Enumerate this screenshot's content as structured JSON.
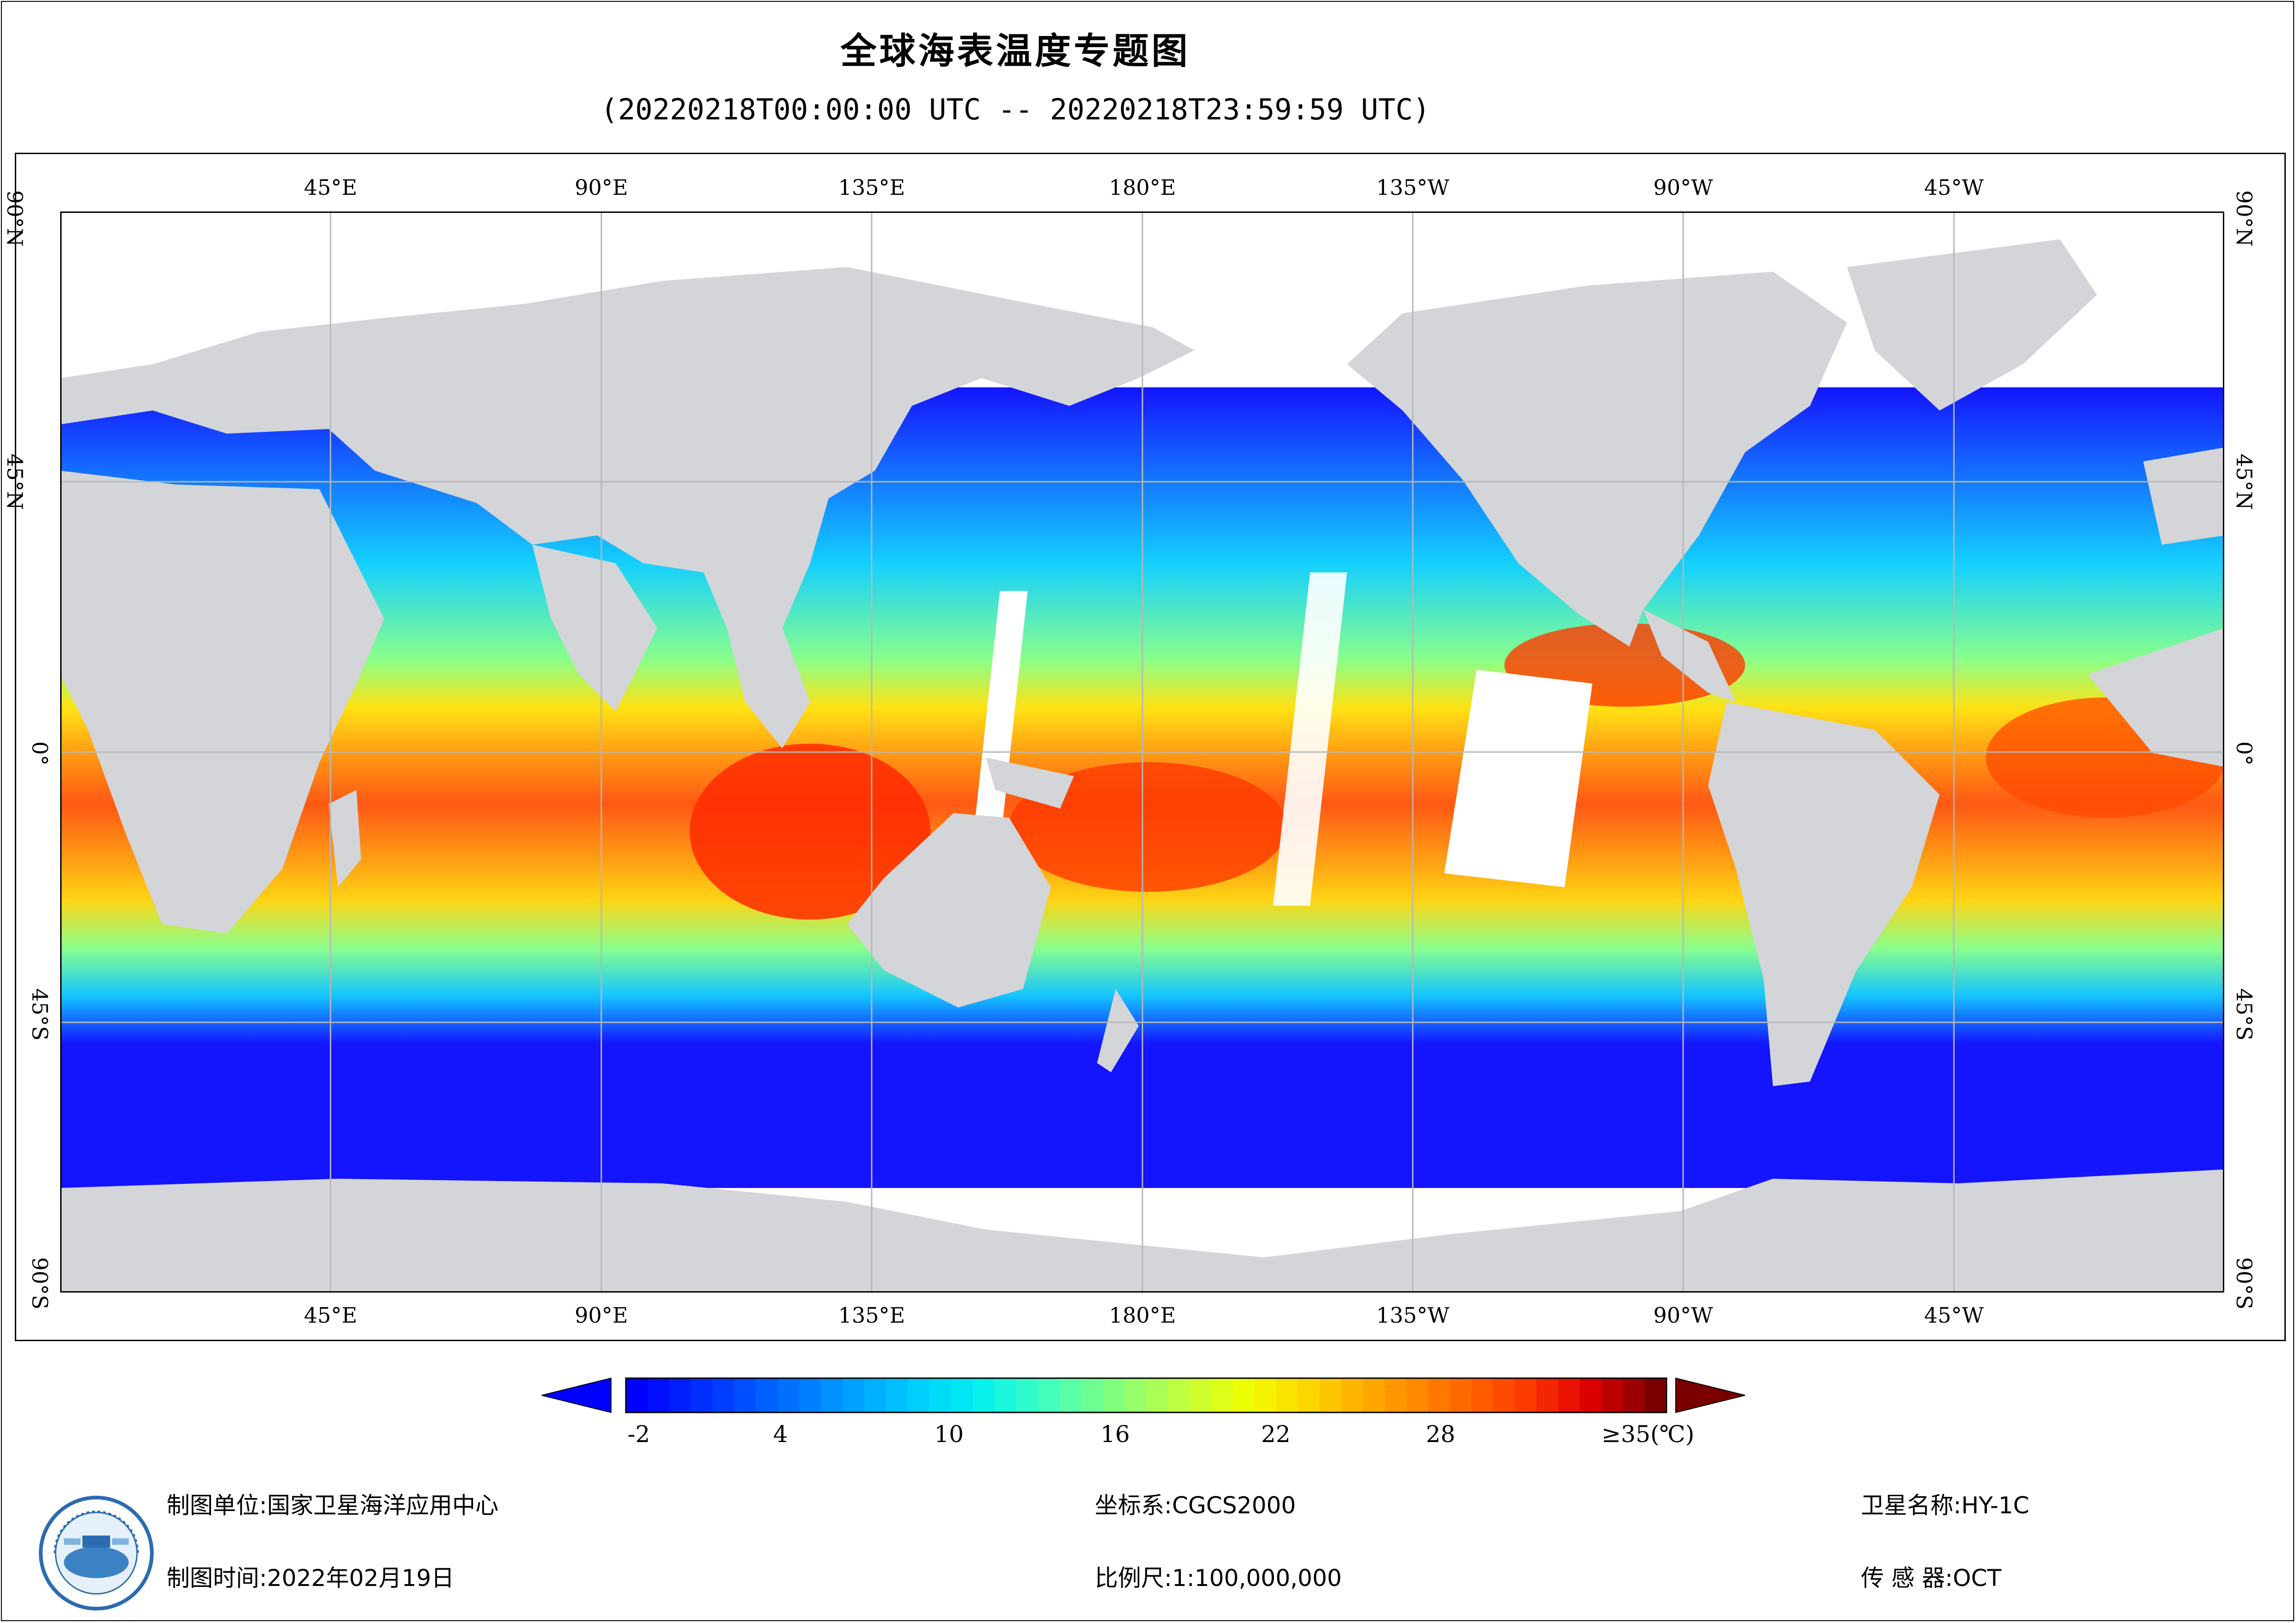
{
  "title": "全球海表温度专题图",
  "subtitle": "(20220218T00:00:00 UTC -- 20220218T23:59:59 UTC)",
  "map": {
    "projection": "Equirectangular (Plate Carrée), centered at 180°",
    "lon_ticks": [
      "45°E",
      "90°E",
      "135°E",
      "180°E",
      "135°W",
      "90°W",
      "45°W"
    ],
    "lat_ticks": [
      "90°N",
      "45°N",
      "0°",
      "45°S",
      "90°S"
    ],
    "land_color": "#d3d5d8",
    "nodata_color": "#ffffff",
    "grid_color": "#b7b7b7",
    "variable": "sea surface temperature"
  },
  "colorbar": {
    "tick_labels": [
      "-2",
      "4",
      "10",
      "16",
      "22",
      "28",
      "≥35(℃)"
    ],
    "min": -2,
    "max": 35,
    "unit": "℃",
    "extend": "both",
    "under_color": "#0000ff",
    "over_color": "#7a0000",
    "colors": [
      "#0000ff",
      "#0030ff",
      "#0064ff",
      "#0096ff",
      "#00c8ff",
      "#00f0f0",
      "#40ffc0",
      "#80ff80",
      "#c0ff40",
      "#f0ff00",
      "#ffd000",
      "#ffa000",
      "#ff7000",
      "#ff4000",
      "#e00000",
      "#7a0000"
    ]
  },
  "footer": {
    "maker_label": "制图单位:",
    "maker_value": "国家卫星海洋应用中心",
    "time_label": "制图时间:",
    "time_value": "2022年02月19日",
    "crs_label": "坐标系:",
    "crs_value": "CGCS2000",
    "scale_label": "比例尺:",
    "scale_value": "1:100,000,000",
    "satellite_label": "卫星名称:",
    "satellite_value": "HY-1C",
    "sensor_label": "传 感 器:",
    "sensor_value": "OCT"
  }
}
